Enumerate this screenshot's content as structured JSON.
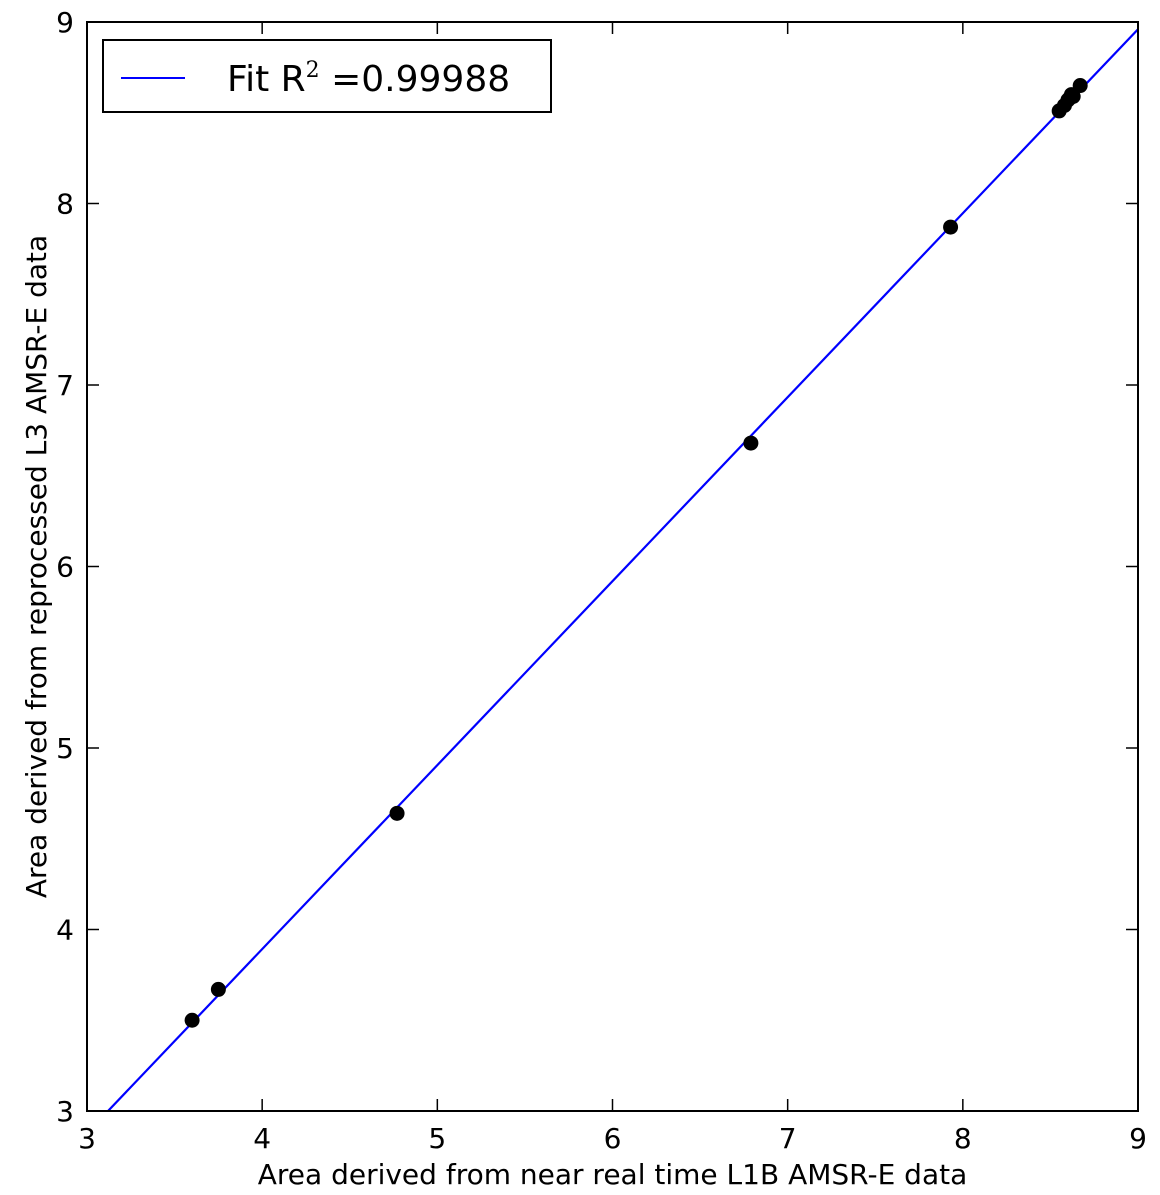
{
  "chart_data": {
    "type": "scatter",
    "title": "",
    "xlabel": "Area derived from near real time L1B AMSR-E data",
    "ylabel": "Area derived from reprocessed L3 AMSR-E data",
    "xlim": [
      3,
      9
    ],
    "ylim": [
      3,
      9
    ],
    "xticks": [
      3,
      4,
      5,
      6,
      7,
      8,
      9
    ],
    "yticks": [
      3,
      4,
      5,
      6,
      7,
      8,
      9
    ],
    "grid": false,
    "legend_position": "top-left",
    "points": {
      "color": "#000000",
      "x": [
        3.6,
        3.75,
        4.77,
        6.79,
        7.93,
        8.55,
        8.58,
        8.6,
        8.61,
        8.62,
        8.63,
        8.67
      ],
      "y": [
        3.5,
        3.67,
        4.64,
        6.68,
        7.87,
        8.51,
        8.54,
        8.57,
        8.58,
        8.6,
        8.59,
        8.65
      ]
    },
    "series": [
      {
        "name_prefix": "Fit R",
        "name_superscript": "2",
        "name_suffix": " =0.99988",
        "type": "line",
        "color": "#0000ff",
        "x": [
          3.12,
          9.0
        ],
        "y": [
          3.0,
          8.96
        ]
      }
    ]
  }
}
